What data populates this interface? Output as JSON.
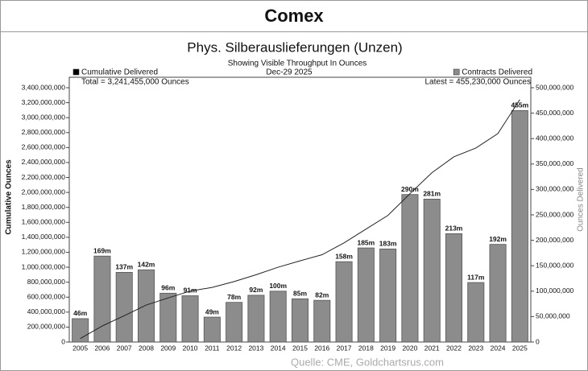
{
  "header": {
    "title": "Comex"
  },
  "chart_data": {
    "type": "bar",
    "title": "Phys. Silberauslieferungen (Unzen)",
    "subtitle": "Showing Visible Throughput In Ounces",
    "date": "Dec-29  2025",
    "legend_notes": [
      "Total = 3,241,455,000 Ounces",
      "Latest = 455,230,000 Ounces"
    ],
    "y_label": "Cumulative Ounces",
    "y2_label": "Ounces Delivered",
    "categories": [
      "2005",
      "2006",
      "2007",
      "2008",
      "2009",
      "2010",
      "2011",
      "2012",
      "2013",
      "2014",
      "2015",
      "2016",
      "2017",
      "2018",
      "2019",
      "2020",
      "2021",
      "2022",
      "2023",
      "2024",
      "2025"
    ],
    "series": [
      {
        "name": "Contracts Delivered",
        "type": "bar",
        "axis": "y2",
        "color": "#8c8c8c",
        "values": [
          46000000,
          169000000,
          137000000,
          142000000,
          96000000,
          91000000,
          49000000,
          78000000,
          92000000,
          100000000,
          85000000,
          82000000,
          158000000,
          185000000,
          183000000,
          290000000,
          281000000,
          213000000,
          117000000,
          192000000,
          455230000
        ],
        "value_labels": [
          "46m",
          "169m",
          "137m",
          "142m",
          "96m",
          "91m",
          "49m",
          "78m",
          "92m",
          "100m",
          "85m",
          "82m",
          "158m",
          "185m",
          "183m",
          "290m",
          "281m",
          "213m",
          "117m",
          "192m",
          "455m"
        ]
      },
      {
        "name": "Cumulative Delivered",
        "type": "line",
        "axis": "y",
        "color": "#222222",
        "values": [
          46000000,
          215000000,
          352000000,
          494000000,
          590000000,
          681000000,
          730000000,
          808000000,
          900000000,
          1000000000,
          1085000000,
          1167000000,
          1325000000,
          1510000000,
          1693000000,
          1983000000,
          2264000000,
          2477000000,
          2594000000,
          2786000000,
          3241455000
        ]
      }
    ],
    "ylim": [
      0,
      3400000000
    ],
    "yticks": [
      0,
      {
        "value": 200000000,
        "label": "200,000,000"
      },
      {
        "value": 400000000,
        "label": "400,000,000"
      },
      {
        "value": 600000000,
        "label": "600,000,000"
      },
      {
        "value": 800000000,
        "label": "800,000,000"
      },
      {
        "value": 1000000000,
        "label": "1,000,000,000"
      },
      {
        "value": 1200000000,
        "label": "1,200,000,000"
      },
      {
        "value": 1400000000,
        "label": "1,400,000,000"
      },
      {
        "value": 1600000000,
        "label": "1,600,000,000"
      },
      {
        "value": 1800000000,
        "label": "1,800,000,000"
      },
      {
        "value": 2000000000,
        "label": "2,000,000,000"
      },
      {
        "value": 2200000000,
        "label": "2,200,000,000"
      },
      {
        "value": 2400000000,
        "label": "2,400,000,000"
      },
      {
        "value": 2600000000,
        "label": "2,600,000,000"
      },
      {
        "value": 2800000000,
        "label": "2,800,000,000"
      },
      {
        "value": 3000000000,
        "label": "3,000,000,000"
      },
      {
        "value": 3200000000,
        "label": "3,200,000,000"
      },
      {
        "value": 3400000000,
        "label": "3,400,000,000"
      }
    ],
    "y2lim": [
      0,
      500000000
    ],
    "y2ticks": [
      0,
      {
        "value": 50000000,
        "label": "50,000,000"
      },
      {
        "value": 100000000,
        "label": "100,000,000"
      },
      {
        "value": 150000000,
        "label": "150,000,000"
      },
      {
        "value": 200000000,
        "label": "200,000,000"
      },
      {
        "value": 250000000,
        "label": "250,000,000"
      },
      {
        "value": 300000000,
        "label": "300,000,000"
      },
      {
        "value": 350000000,
        "label": "350,000,000"
      },
      {
        "value": 400000000,
        "label": "400,000,000"
      },
      {
        "value": 450000000,
        "label": "450,000,000"
      },
      {
        "value": 500000000,
        "label": "500,000,000"
      }
    ]
  },
  "footer": {
    "source": "Quelle: CME, Goldchartsrus.com"
  }
}
